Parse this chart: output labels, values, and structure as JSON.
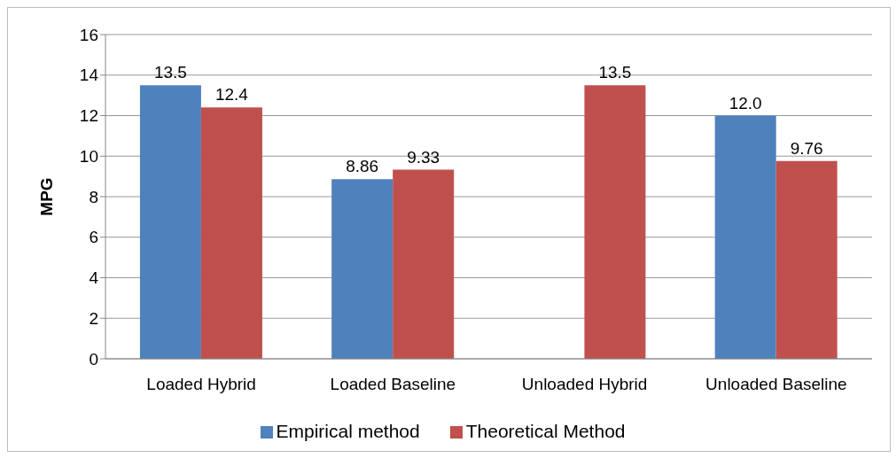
{
  "chart_data": {
    "type": "bar",
    "ylabel": "MPG",
    "categories": [
      "Loaded Hybrid",
      "Loaded Baseline",
      "Unloaded Hybrid",
      "Unloaded Baseline"
    ],
    "series": [
      {
        "name": "Empirical method",
        "color": "#4f81bd",
        "values": [
          13.5,
          8.86,
          null,
          12.0
        ],
        "value_labels": [
          "13.5",
          "8.86",
          null,
          "12.0"
        ]
      },
      {
        "name": "Theoretical Method",
        "color": "#c0504d",
        "values": [
          12.4,
          9.33,
          13.5,
          9.76
        ],
        "value_labels": [
          "12.4",
          "9.33",
          "13.5",
          "9.76"
        ]
      }
    ],
    "ylim": [
      0,
      16
    ],
    "yticks": [
      0,
      2,
      4,
      6,
      8,
      10,
      12,
      14,
      16
    ],
    "grid": "y",
    "legend": "bottom"
  }
}
